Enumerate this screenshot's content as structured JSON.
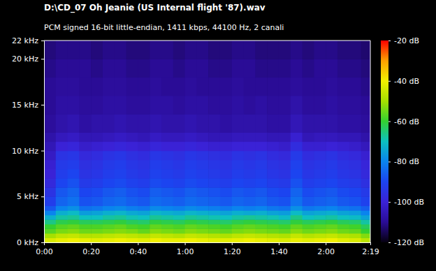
{
  "chart_data": {
    "type": "heatmap",
    "title": "D:\\CD_07 Oh Jeanie (US Internal flight '87).wav",
    "subtitle": "PCM signed 16-bit little-endian, 1411 kbps, 44100 Hz, 2 canali",
    "xlim": [
      0,
      139
    ],
    "xticks": [
      {
        "value": 0,
        "label": "0:00"
      },
      {
        "value": 20,
        "label": "0:20"
      },
      {
        "value": 40,
        "label": "0:40"
      },
      {
        "value": 60,
        "label": "1:00"
      },
      {
        "value": 80,
        "label": "1:20"
      },
      {
        "value": 100,
        "label": "1:40"
      },
      {
        "value": 120,
        "label": "2:00"
      },
      {
        "value": 139,
        "label": "2:19"
      }
    ],
    "ylim": [
      0,
      22
    ],
    "yticks": [
      {
        "value": 0,
        "label": "0 kHz"
      },
      {
        "value": 5,
        "label": "5 kHz"
      },
      {
        "value": 10,
        "label": "10 kHz"
      },
      {
        "value": 15,
        "label": "15 kHz"
      },
      {
        "value": 20,
        "label": "20 kHz"
      },
      {
        "value": 22,
        "label": "22 kHz"
      }
    ],
    "time_bins": [
      0,
      5,
      10,
      15,
      20,
      25,
      30,
      35,
      40,
      45,
      50,
      55,
      60,
      65,
      70,
      75,
      80,
      85,
      90,
      95,
      100,
      105,
      110,
      115,
      120,
      125,
      130,
      135,
      139
    ],
    "freq_bins": [
      0,
      0.5,
      1,
      1.5,
      2,
      2.5,
      3,
      3.5,
      4,
      5,
      6,
      7,
      8,
      9,
      10,
      11,
      12,
      14,
      16,
      18,
      20,
      22
    ],
    "cells": [
      [
        -43,
        -41,
        -40,
        -41,
        -42,
        -41,
        -40,
        -41,
        -42,
        -40,
        -41,
        -41,
        -40,
        -41,
        -42,
        -42,
        -41,
        -40,
        -41,
        -42,
        -43,
        -41,
        -42,
        -41,
        -40,
        -42,
        -43,
        -47
      ],
      [
        -50,
        -47,
        -46,
        -48,
        -48,
        -47,
        -46,
        -47,
        -48,
        -46,
        -47,
        -48,
        -46,
        -47,
        -48,
        -49,
        -47,
        -46,
        -47,
        -48,
        -49,
        -46,
        -48,
        -47,
        -46,
        -48,
        -49,
        -53
      ],
      [
        -57,
        -54,
        -53,
        -55,
        -55,
        -54,
        -53,
        -54,
        -56,
        -53,
        -54,
        -55,
        -53,
        -54,
        -55,
        -56,
        -54,
        -53,
        -54,
        -55,
        -56,
        -53,
        -55,
        -54,
        -53,
        -55,
        -56,
        -60
      ],
      [
        -60,
        -57,
        -56,
        -58,
        -58,
        -57,
        -56,
        -58,
        -59,
        -56,
        -57,
        -58,
        -56,
        -57,
        -58,
        -59,
        -57,
        -56,
        -57,
        -58,
        -59,
        -56,
        -58,
        -57,
        -56,
        -58,
        -59,
        -63
      ],
      [
        -66,
        -62,
        -61,
        -63,
        -63,
        -62,
        -61,
        -63,
        -64,
        -61,
        -62,
        -63,
        -61,
        -62,
        -63,
        -64,
        -62,
        -61,
        -62,
        -63,
        -64,
        -61,
        -63,
        -62,
        -61,
        -63,
        -64,
        -68
      ],
      [
        -73,
        -68,
        -67,
        -70,
        -70,
        -68,
        -67,
        -69,
        -70,
        -67,
        -68,
        -69,
        -67,
        -68,
        -69,
        -70,
        -68,
        -67,
        -68,
        -69,
        -71,
        -66,
        -70,
        -69,
        -68,
        -70,
        -71,
        -75
      ],
      [
        -80,
        -73,
        -71,
        -76,
        -75,
        -73,
        -72,
        -74,
        -75,
        -72,
        -73,
        -74,
        -72,
        -73,
        -74,
        -75,
        -73,
        -74,
        -73,
        -75,
        -76,
        -71,
        -75,
        -74,
        -73,
        -75,
        -76,
        -80
      ],
      [
        -87,
        -80,
        -78,
        -83,
        -82,
        -80,
        -79,
        -81,
        -82,
        -79,
        -80,
        -81,
        -79,
        -80,
        -81,
        -82,
        -80,
        -81,
        -80,
        -82,
        -83,
        -78,
        -82,
        -81,
        -80,
        -82,
        -83,
        -86
      ],
      [
        -92,
        -85,
        -83,
        -88,
        -87,
        -85,
        -84,
        -86,
        -87,
        -84,
        -85,
        -86,
        -84,
        -85,
        -86,
        -87,
        -85,
        -86,
        -85,
        -87,
        -88,
        -83,
        -87,
        -86,
        -85,
        -87,
        -88,
        -91
      ],
      [
        -95,
        -87,
        -85,
        -90,
        -89,
        -87,
        -86,
        -88,
        -89,
        -86,
        -87,
        -88,
        -86,
        -87,
        -88,
        -89,
        -87,
        -88,
        -87,
        -89,
        -90,
        -85,
        -89,
        -88,
        -87,
        -89,
        -90,
        -93
      ],
      [
        -98,
        -90,
        -88,
        -93,
        -92,
        -90,
        -89,
        -91,
        -92,
        -89,
        -90,
        -91,
        -89,
        -90,
        -91,
        -92,
        -90,
        -91,
        -90,
        -92,
        -93,
        -88,
        -92,
        -91,
        -90,
        -92,
        -93,
        -96
      ],
      [
        -100,
        -92,
        -90,
        -95,
        -94,
        -92,
        -91,
        -93,
        -94,
        -91,
        -92,
        -93,
        -91,
        -92,
        -93,
        -94,
        -92,
        -93,
        -92,
        -94,
        -95,
        -90,
        -94,
        -93,
        -92,
        -94,
        -95,
        -98
      ],
      [
        -101,
        -93,
        -92,
        -96,
        -95,
        -93,
        -92,
        -94,
        -95,
        -92,
        -93,
        -94,
        -92,
        -93,
        -94,
        -95,
        -93,
        -94,
        -93,
        -95,
        -96,
        -91,
        -95,
        -94,
        -93,
        -95,
        -96,
        -99
      ],
      [
        -103,
        -95,
        -94,
        -98,
        -97,
        -95,
        -94,
        -96,
        -97,
        -94,
        -95,
        -96,
        -94,
        -95,
        -96,
        -97,
        -95,
        -96,
        -95,
        -97,
        -98,
        -93,
        -97,
        -96,
        -95,
        -97,
        -98,
        -101
      ],
      [
        -105,
        -100,
        -99,
        -102,
        -101,
        -100,
        -99,
        -100,
        -101,
        -99,
        -100,
        -100,
        -99,
        -100,
        -101,
        -101,
        -100,
        -100,
        -100,
        -101,
        -102,
        -97,
        -101,
        -101,
        -100,
        -101,
        -102,
        -104
      ],
      [
        -107,
        -104,
        -103,
        -105,
        -105,
        -104,
        -103,
        -104,
        -105,
        -103,
        -104,
        -104,
        -103,
        -104,
        -105,
        -105,
        -104,
        -104,
        -104,
        -105,
        -105,
        -101,
        -105,
        -104,
        -104,
        -105,
        -105,
        -107
      ],
      [
        -109,
        -107,
        -106,
        -108,
        -107,
        -107,
        -106,
        -107,
        -107,
        -106,
        -107,
        -107,
        -106,
        -107,
        -107,
        -108,
        -107,
        -107,
        -107,
        -108,
        -108,
        -105,
        -107,
        -107,
        -107,
        -108,
        -108,
        -109
      ],
      [
        -110,
        -108,
        -108,
        -109,
        -109,
        -108,
        -108,
        -109,
        -109,
        -108,
        -108,
        -109,
        -108,
        -108,
        -109,
        -109,
        -108,
        -109,
        -108,
        -109,
        -109,
        -107,
        -109,
        -109,
        -108,
        -109,
        -109,
        -110
      ],
      [
        -110,
        -109,
        -109,
        -110,
        -110,
        -109,
        -109,
        -110,
        -110,
        -109,
        -110,
        -110,
        -109,
        -110,
        -110,
        -110,
        -109,
        -110,
        -110,
        -110,
        -110,
        -109,
        -110,
        -110,
        -109,
        -110,
        -110,
        -111
      ],
      [
        -111,
        -110,
        -110,
        -110,
        -111,
        -110,
        -110,
        -111,
        -111,
        -110,
        -110,
        -111,
        -110,
        -110,
        -111,
        -111,
        -110,
        -110,
        -111,
        -111,
        -111,
        -110,
        -111,
        -110,
        -110,
        -111,
        -111,
        -112
      ],
      [
        -112,
        -111,
        -111,
        -111,
        -112,
        -111,
        -111,
        -112,
        -112,
        -111,
        -111,
        -112,
        -111,
        -111,
        -112,
        -112,
        -111,
        -111,
        -112,
        -112,
        -112,
        -111,
        -112,
        -111,
        -111,
        -112,
        -112,
        -113
      ]
    ],
    "colorbar": {
      "range": [
        -120,
        -20
      ],
      "ticks": [
        {
          "value": -20,
          "label": "-20 dB"
        },
        {
          "value": -40,
          "label": "-40 dB"
        },
        {
          "value": -60,
          "label": "-60 dB"
        },
        {
          "value": -80,
          "label": "-80 dB"
        },
        {
          "value": -100,
          "label": "-100 dB"
        },
        {
          "value": -120,
          "label": "-120 dB"
        }
      ]
    }
  }
}
